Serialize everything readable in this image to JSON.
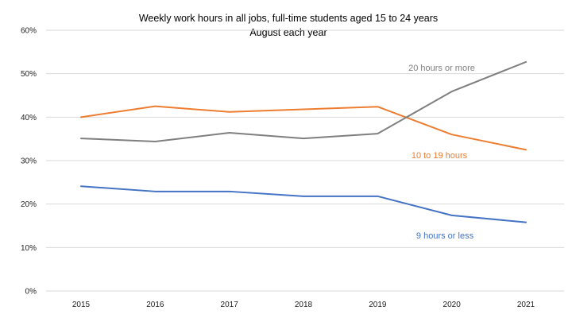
{
  "chart_data": {
    "type": "line",
    "title": "Weekly work hours in all jobs, full-time students aged 15 to 24 years",
    "subtitle": "August each year",
    "xlabel": "",
    "ylabel": "",
    "categories": [
      "2015",
      "2016",
      "2017",
      "2018",
      "2019",
      "2020",
      "2021"
    ],
    "ylim": [
      0,
      60
    ],
    "yticks": [
      0,
      10,
      20,
      30,
      40,
      50,
      60
    ],
    "ytick_labels": [
      "0%",
      "10%",
      "20%",
      "30%",
      "40%",
      "50%",
      "60%"
    ],
    "grid": true,
    "legend": "inline labels near line ends",
    "series": [
      {
        "name": "9 hours or less",
        "color": "#4472C4",
        "values": [
          24.1,
          22.9,
          22.9,
          21.8,
          21.8,
          17.4,
          15.8
        ]
      },
      {
        "name": "10 to 19 hours",
        "color": "#ED7D31",
        "values": [
          40.0,
          42.5,
          41.2,
          41.8,
          42.4,
          36.0,
          32.5
        ]
      },
      {
        "name": "20 hours or more",
        "color": "#7F7F7F",
        "values": [
          35.1,
          34.4,
          36.4,
          35.1,
          36.2,
          45.9,
          52.7
        ]
      }
    ]
  }
}
